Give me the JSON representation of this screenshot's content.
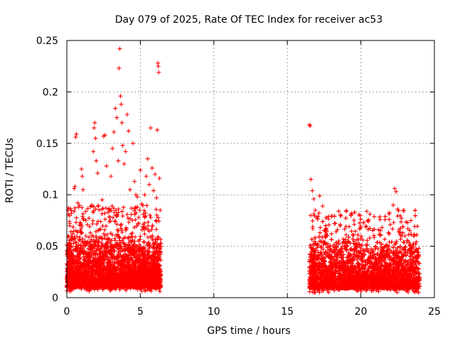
{
  "chart_data": {
    "type": "scatter",
    "title": "Day 079 of 2025, Rate Of TEC Index for receiver ac53",
    "xlabel": "GPS time / hours",
    "ylabel": "ROTI / TECUs",
    "xlim": [
      0,
      25
    ],
    "ylim": [
      0,
      0.25
    ],
    "x_ticks": [
      0,
      5,
      10,
      15,
      20,
      25
    ],
    "y_ticks": [
      0,
      0.05,
      0.1,
      0.15,
      0.2,
      0.25
    ],
    "x_tick_labels": [
      "0",
      "5",
      "10",
      "15",
      "20",
      "25"
    ],
    "y_tick_labels": [
      "0",
      "0.05",
      "0.1",
      "0.15",
      "0.2",
      "0.25"
    ],
    "grid": true,
    "marker": "plus",
    "color": "#ff0000",
    "series": [
      {
        "points": [
          [
            0.05,
            0.022
          ],
          [
            0.1,
            0.081
          ],
          [
            0.15,
            0.035
          ],
          [
            0.2,
            0.07
          ],
          [
            0.3,
            0.05
          ],
          [
            0.4,
            0.062
          ],
          [
            0.5,
            0.106
          ],
          [
            0.55,
            0.108
          ],
          [
            0.6,
            0.156
          ],
          [
            0.65,
            0.159
          ],
          [
            0.7,
            0.045
          ],
          [
            0.75,
            0.092
          ],
          [
            0.8,
            0.088
          ],
          [
            0.9,
            0.073
          ],
          [
            1.0,
            0.125
          ],
          [
            1.05,
            0.118
          ],
          [
            1.1,
            0.105
          ],
          [
            1.2,
            0.052
          ],
          [
            1.3,
            0.06
          ],
          [
            1.4,
            0.071
          ],
          [
            1.5,
            0.041
          ],
          [
            1.6,
            0.063
          ],
          [
            1.7,
            0.09
          ],
          [
            1.8,
            0.142
          ],
          [
            1.85,
            0.165
          ],
          [
            1.9,
            0.17
          ],
          [
            1.95,
            0.155
          ],
          [
            2.0,
            0.133
          ],
          [
            2.1,
            0.121
          ],
          [
            2.2,
            0.058
          ],
          [
            2.3,
            0.074
          ],
          [
            2.4,
            0.095
          ],
          [
            2.5,
            0.157
          ],
          [
            2.6,
            0.158
          ],
          [
            2.7,
            0.128
          ],
          [
            2.8,
            0.083
          ],
          [
            2.9,
            0.079
          ],
          [
            3.0,
            0.118
          ],
          [
            3.1,
            0.145
          ],
          [
            3.2,
            0.161
          ],
          [
            3.3,
            0.184
          ],
          [
            3.4,
            0.175
          ],
          [
            3.5,
            0.133
          ],
          [
            3.6,
            0.242
          ],
          [
            3.55,
            0.223
          ],
          [
            3.65,
            0.196
          ],
          [
            3.7,
            0.188
          ],
          [
            3.75,
            0.17
          ],
          [
            3.8,
            0.148
          ],
          [
            3.9,
            0.13
          ],
          [
            4.0,
            0.142
          ],
          [
            4.1,
            0.178
          ],
          [
            4.2,
            0.162
          ],
          [
            4.3,
            0.105
          ],
          [
            4.4,
            0.087
          ],
          [
            4.5,
            0.15
          ],
          [
            4.6,
            0.113
          ],
          [
            4.7,
            0.1
          ],
          [
            4.8,
            0.098
          ],
          [
            4.9,
            0.072
          ],
          [
            5.0,
            0.124
          ],
          [
            5.1,
            0.091
          ],
          [
            5.2,
            0.081
          ],
          [
            5.3,
            0.1
          ],
          [
            5.4,
            0.118
          ],
          [
            5.5,
            0.135
          ],
          [
            5.6,
            0.11
          ],
          [
            5.7,
            0.165
          ],
          [
            5.8,
            0.126
          ],
          [
            5.9,
            0.104
          ],
          [
            6.0,
            0.12
          ],
          [
            6.1,
            0.097
          ],
          [
            6.15,
            0.163
          ],
          [
            6.2,
            0.228
          ],
          [
            6.22,
            0.225
          ],
          [
            6.25,
            0.219
          ],
          [
            6.3,
            0.116
          ],
          [
            6.35,
            0.085
          ],
          [
            16.5,
            0.168
          ],
          [
            16.55,
            0.167
          ],
          [
            16.6,
            0.115
          ],
          [
            16.7,
            0.104
          ],
          [
            16.8,
            0.096
          ],
          [
            16.9,
            0.085
          ],
          [
            17.0,
            0.078
          ],
          [
            17.2,
            0.099
          ],
          [
            17.4,
            0.089
          ],
          [
            17.6,
            0.07
          ],
          [
            17.8,
            0.079
          ],
          [
            18.0,
            0.062
          ],
          [
            18.2,
            0.072
          ],
          [
            18.4,
            0.066
          ],
          [
            18.6,
            0.071
          ],
          [
            18.8,
            0.057
          ],
          [
            19.0,
            0.061
          ],
          [
            19.2,
            0.069
          ],
          [
            19.4,
            0.046
          ],
          [
            19.6,
            0.052
          ],
          [
            19.8,
            0.061
          ],
          [
            20.0,
            0.068
          ],
          [
            20.2,
            0.073
          ],
          [
            20.4,
            0.084
          ],
          [
            20.6,
            0.058
          ],
          [
            20.8,
            0.044
          ],
          [
            21.0,
            0.05
          ],
          [
            21.2,
            0.066
          ],
          [
            21.4,
            0.037
          ],
          [
            21.6,
            0.045
          ],
          [
            21.8,
            0.05
          ],
          [
            22.0,
            0.071
          ],
          [
            22.2,
            0.09
          ],
          [
            22.3,
            0.106
          ],
          [
            22.4,
            0.103
          ],
          [
            22.5,
            0.086
          ],
          [
            22.6,
            0.064
          ],
          [
            22.8,
            0.047
          ],
          [
            23.0,
            0.06
          ],
          [
            23.2,
            0.067
          ],
          [
            23.4,
            0.075
          ],
          [
            23.6,
            0.052
          ],
          [
            23.8,
            0.061
          ],
          [
            23.95,
            0.04
          ]
        ]
      }
    ],
    "dense_bands": [
      {
        "x_start": 0.0,
        "x_end": 6.4,
        "y_min": 0.006,
        "y_max": 0.06,
        "peak_y_max": 0.09
      },
      {
        "x_start": 16.5,
        "x_end": 24.0,
        "y_min": 0.005,
        "y_max": 0.055,
        "peak_y_max": 0.085
      }
    ]
  }
}
